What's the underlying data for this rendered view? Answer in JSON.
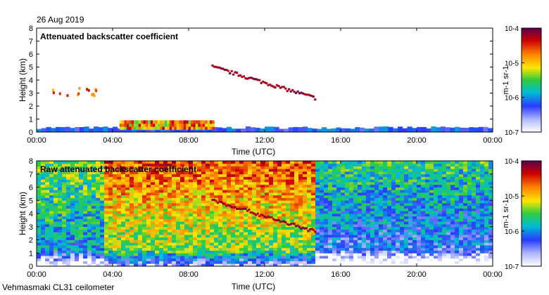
{
  "header": {
    "date": "26 Aug 2019"
  },
  "footer": {
    "site": "Vehmasmaki CL31 ceilometer"
  },
  "chart_data": [
    {
      "type": "heatmap",
      "title": "Attenuated backscatter coefficient",
      "xlabel": "Time (UTC)",
      "ylabel": "Height (km)",
      "xticks": [
        "00:00",
        "04:00",
        "08:00",
        "12:00",
        "16:00",
        "20:00",
        "00:00"
      ],
      "xlim_hours": [
        0,
        24
      ],
      "ylim": [
        0,
        8
      ],
      "yticks": [
        0,
        1,
        2,
        3,
        4,
        5,
        6,
        7,
        8
      ],
      "colorbar": {
        "label": "m-1 sr-1",
        "ticks": [
          "10-7",
          "10-6",
          "10-5",
          "10-4"
        ],
        "log10_range": [
          -7,
          -4
        ]
      },
      "features": [
        {
          "name": "surface layer",
          "t_start_h": 0,
          "t_end_h": 24,
          "h_top_km": 0.4,
          "log10_beta": -6.2
        },
        {
          "name": "low cloud",
          "t_start_h": 4.3,
          "t_end_h": 9.3,
          "h_base_km": 0.2,
          "h_top_km": 0.9,
          "log10_beta": -5.0
        },
        {
          "name": "cirrus layer",
          "t_start_h": 9.2,
          "t_end_h": 14.6,
          "h_start_km": 5.1,
          "h_end_km": 2.7,
          "log10_beta": -4.2
        },
        {
          "name": "early cloud",
          "t_start_h": 0.5,
          "t_end_h": 3.2,
          "h_base_km": 2.9,
          "h_top_km": 3.6,
          "log10_beta": -4.6
        }
      ]
    },
    {
      "type": "heatmap",
      "title": "Raw attenuated backscatter coefficient",
      "xlabel": "Time (UTC)",
      "ylabel": "Height (km)",
      "xticks": [
        "00:00",
        "04:00",
        "08:00",
        "12:00",
        "16:00",
        "20:00",
        "00:00"
      ],
      "xlim_hours": [
        0,
        24
      ],
      "ylim": [
        0,
        8
      ],
      "yticks": [
        0,
        1,
        2,
        3,
        4,
        5,
        6,
        7,
        8
      ],
      "colorbar": {
        "label": "m-1 sr-1",
        "ticks": [
          "10-7",
          "10-6",
          "10-5",
          "10-4"
        ],
        "log10_range": [
          -7,
          -4
        ]
      },
      "features": [
        {
          "name": "noisy background (daytime)",
          "t_start_h": 3.5,
          "t_end_h": 14.6,
          "log10_beta": -4.6
        },
        {
          "name": "noisy background (night)",
          "t_start_h": 14.6,
          "t_end_h": 24,
          "log10_beta": -5.6
        },
        {
          "name": "cirrus layer",
          "t_start_h": 9.2,
          "t_end_h": 14.6,
          "h_start_km": 5.1,
          "h_end_km": 2.7,
          "log10_beta": -4.2
        }
      ]
    }
  ]
}
